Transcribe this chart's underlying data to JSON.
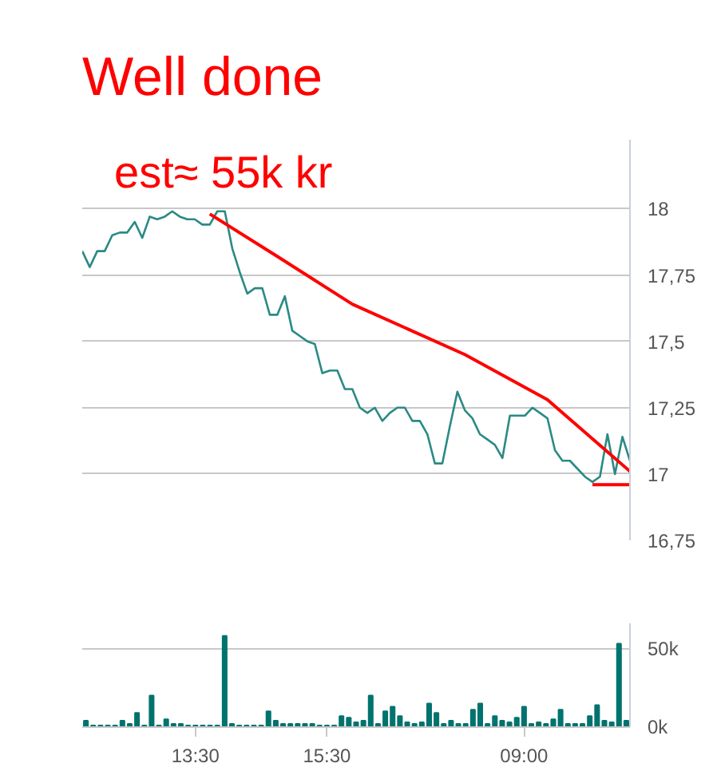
{
  "chart_data": [
    {
      "type": "line",
      "title": "Well done",
      "annotations": [
        "est≈ 55k kr"
      ],
      "ylim": [
        16.75,
        18.26
      ],
      "categories": [
        null,
        null,
        null,
        null,
        null,
        null,
        null,
        null,
        null,
        null,
        null,
        null,
        null,
        null,
        null,
        null,
        null,
        null,
        null,
        null,
        null,
        null,
        null,
        null,
        null,
        null,
        null,
        null,
        null,
        null,
        null,
        null,
        null,
        null,
        null,
        null,
        null,
        null,
        null,
        null,
        null,
        null,
        null,
        null,
        null,
        null,
        null,
        null,
        null,
        null,
        null,
        null,
        null,
        null,
        null,
        null,
        null,
        null,
        null,
        null,
        null,
        null,
        null,
        null,
        null,
        null,
        null,
        null,
        null,
        null,
        null,
        null,
        null,
        null
      ],
      "yticks": [
        {
          "value": 16.75,
          "label": "16,75"
        },
        17,
        {
          "value": 17.25,
          "label": "17,25"
        },
        {
          "value": 17.5,
          "label": "17,5"
        },
        {
          "value": 17.75,
          "label": "17,75"
        },
        18
      ],
      "grid": "y",
      "tick_labels": "y",
      "line_style": "solid",
      "series": [
        {
          "color": "#2a8a85",
          "values": [
            17.84,
            17.78,
            17.84,
            17.84,
            17.9,
            17.91,
            17.91,
            17.95,
            17.89,
            17.97,
            17.96,
            17.97,
            17.99,
            17.97,
            17.96,
            17.96,
            17.94,
            17.94,
            17.99,
            17.99,
            17.85,
            17.76,
            17.68,
            17.7,
            17.7,
            17.6,
            17.6,
            17.67,
            17.54,
            17.52,
            17.5,
            17.49,
            17.38,
            17.39,
            17.39,
            17.32,
            17.32,
            17.25,
            17.23,
            17.25,
            17.2,
            17.23,
            17.25,
            17.25,
            17.2,
            17.2,
            17.15,
            17.04,
            17.04,
            17.18,
            17.31,
            17.24,
            17.21,
            17.15,
            17.13,
            17.11,
            17.06,
            17.22,
            17.22,
            17.22,
            17.25,
            17.23,
            17.21,
            17.09,
            17.05,
            17.05,
            17.02,
            16.99,
            16.97,
            16.99,
            17.15,
            17.0,
            17.14,
            17.05
          ]
        },
        {
          "color": "#ff0000",
          "values": [
            null,
            null,
            null,
            null,
            null,
            null,
            null,
            null,
            null,
            null,
            null,
            null,
            null,
            null,
            null,
            null,
            null,
            17.98,
            null,
            null,
            null,
            null,
            null,
            null,
            null,
            null,
            17.82,
            null,
            null,
            null,
            null,
            null,
            null,
            null,
            null,
            null,
            17.64,
            null,
            null,
            null,
            null,
            null,
            null,
            null,
            null,
            null,
            null,
            null,
            null,
            null,
            null,
            17.45,
            null,
            null,
            null,
            null,
            null,
            null,
            null,
            null,
            null,
            null,
            17.28,
            null,
            null,
            null,
            null,
            null,
            null,
            null,
            null,
            null,
            null,
            17.01
          ]
        },
        {
          "color": "#ff0000",
          "values": [
            null,
            null,
            null,
            null,
            null,
            null,
            null,
            null,
            null,
            null,
            null,
            null,
            null,
            null,
            null,
            null,
            null,
            null,
            null,
            null,
            null,
            null,
            null,
            null,
            null,
            null,
            null,
            null,
            null,
            null,
            null,
            null,
            null,
            null,
            null,
            null,
            null,
            null,
            null,
            null,
            null,
            null,
            null,
            null,
            null,
            null,
            null,
            null,
            null,
            null,
            null,
            null,
            null,
            null,
            null,
            null,
            null,
            null,
            null,
            null,
            null,
            null,
            null,
            null,
            null,
            null,
            null,
            null,
            16.96,
            null,
            null,
            null,
            null,
            16.96
          ]
        }
      ]
    },
    {
      "type": "bar",
      "color": "#00736e",
      "ylim": [
        0,
        66
      ],
      "categories": [
        null,
        null,
        null,
        null,
        null,
        null,
        null,
        null,
        null,
        null,
        null,
        null,
        null,
        null,
        null,
        "13:30",
        null,
        null,
        null,
        null,
        null,
        null,
        null,
        null,
        null,
        null,
        null,
        null,
        null,
        null,
        null,
        null,
        null,
        "15:30",
        null,
        null,
        null,
        null,
        null,
        null,
        null,
        null,
        null,
        null,
        null,
        null,
        null,
        null,
        null,
        null,
        null,
        null,
        null,
        null,
        null,
        null,
        null,
        null,
        null,
        null,
        "09:00",
        null,
        null,
        null,
        null,
        null,
        null,
        null,
        null,
        null,
        null,
        null,
        null,
        null,
        null
      ],
      "yticks": [
        {
          "value": 0,
          "label": "0k"
        },
        {
          "value": 50,
          "label": "50k"
        }
      ],
      "grid": "y",
      "values": [
        4,
        1,
        1,
        1,
        1,
        4,
        2,
        9,
        1,
        20,
        1,
        5,
        2,
        2,
        1,
        1,
        1,
        1,
        1,
        58,
        2,
        1,
        1,
        1,
        1,
        10,
        4,
        2,
        2,
        2,
        2,
        2,
        1,
        1,
        1,
        7,
        6,
        3,
        4,
        20,
        2,
        10,
        13,
        7,
        3,
        2,
        3,
        15,
        9,
        2,
        4,
        2,
        2,
        11,
        15,
        2,
        7,
        4,
        3,
        6,
        13,
        2,
        3,
        2,
        5,
        11,
        2,
        2,
        2,
        7,
        14,
        4,
        3,
        53,
        4
      ]
    }
  ]
}
